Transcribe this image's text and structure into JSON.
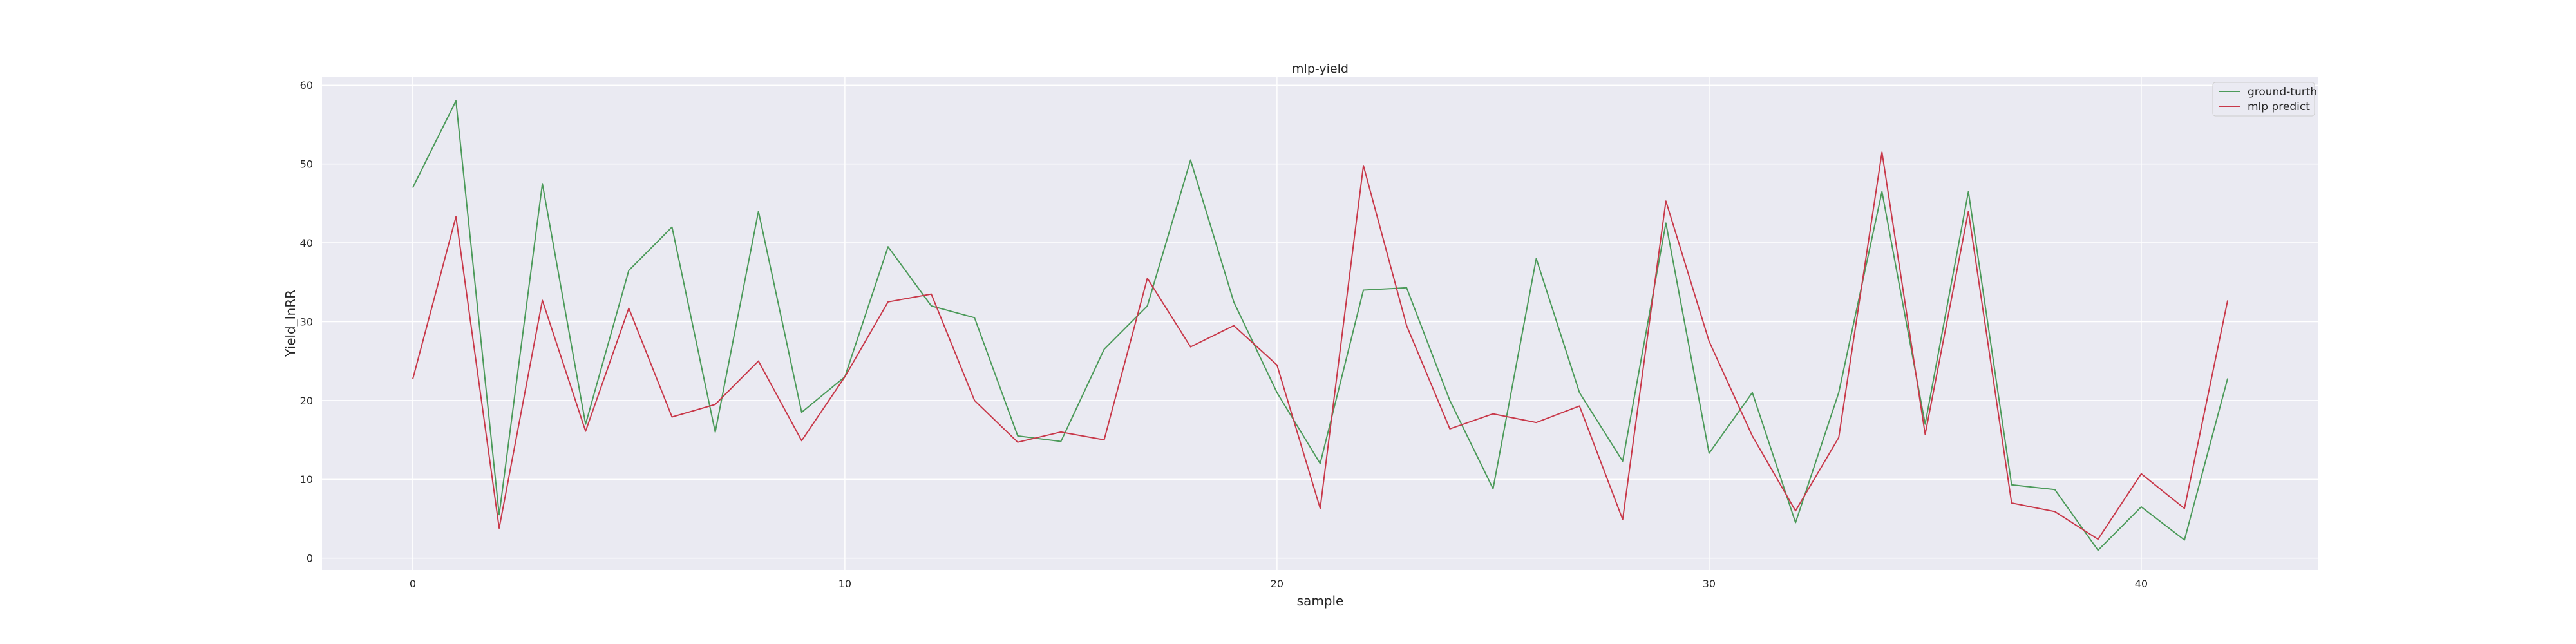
{
  "chart_data": {
    "type": "line",
    "title": "mlp-yield",
    "xlabel": "sample",
    "ylabel": "Yield_InRR",
    "xlim": [
      -2.1,
      44.1
    ],
    "ylim": [
      -1.5,
      61.0
    ],
    "xticks": [
      0,
      10,
      20,
      30,
      40
    ],
    "yticks": [
      0,
      10,
      20,
      30,
      40,
      50,
      60
    ],
    "grid": true,
    "legend_position": "top-right",
    "x": [
      0,
      1,
      2,
      3,
      4,
      5,
      6,
      7,
      8,
      9,
      10,
      11,
      12,
      13,
      14,
      15,
      16,
      17,
      18,
      19,
      20,
      21,
      22,
      23,
      24,
      25,
      26,
      27,
      28,
      29,
      30,
      31,
      32,
      33,
      34,
      35,
      36,
      37,
      38,
      39,
      40,
      41,
      42
    ],
    "series": [
      {
        "name": "ground-turth",
        "color": "#4c9a5a",
        "values": [
          47.0,
          58.0,
          5.5,
          47.5,
          17.0,
          36.5,
          42.0,
          16.0,
          44.0,
          18.5,
          23.0,
          39.5,
          32.0,
          30.5,
          15.5,
          14.8,
          26.5,
          32.0,
          50.5,
          32.5,
          21.0,
          12.0,
          34.0,
          34.3,
          20.0,
          8.8,
          38.0,
          21.0,
          12.3,
          42.5,
          13.3,
          21.0,
          4.5,
          21.0,
          46.5,
          17.0,
          46.5,
          9.3,
          8.7,
          1.0,
          6.5,
          2.3,
          22.8
        ]
      },
      {
        "name": "mlp predict",
        "color": "#c8394a",
        "values": [
          22.7,
          43.3,
          3.8,
          32.7,
          16.1,
          31.7,
          17.9,
          19.5,
          25.0,
          14.9,
          23.0,
          32.5,
          33.5,
          20.0,
          14.7,
          16.0,
          15.0,
          35.5,
          26.8,
          29.5,
          24.5,
          6.3,
          49.8,
          29.5,
          16.4,
          18.3,
          17.2,
          19.3,
          4.9,
          45.3,
          27.5,
          15.5,
          6.0,
          15.3,
          51.5,
          15.7,
          44.0,
          7.0,
          5.9,
          2.4,
          10.7,
          6.3,
          32.7
        ]
      }
    ]
  },
  "colors": {
    "plot_background": "#eaeaf2",
    "grid": "#ffffff",
    "figure_background": "#ffffff"
  }
}
